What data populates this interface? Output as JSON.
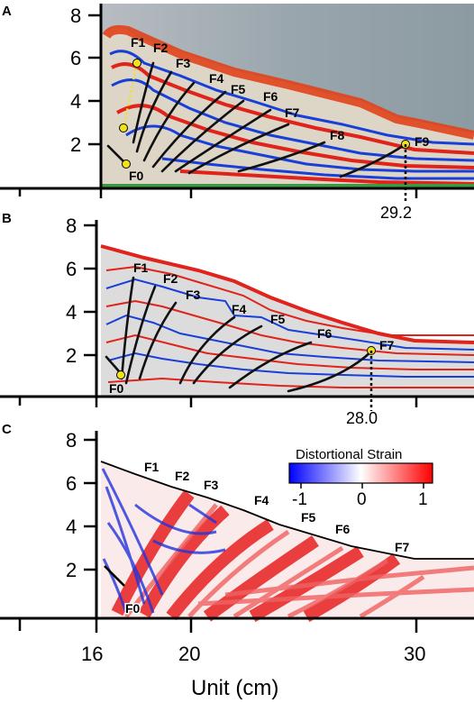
{
  "panels": [
    {
      "letter": "A",
      "y_ticks": [
        "8",
        "6",
        "4",
        "2"
      ],
      "faults": [
        "F1",
        "F2",
        "F3",
        "F4",
        "F5",
        "F6",
        "F7",
        "F8",
        "F9",
        "F0"
      ],
      "front_label": "29.2"
    },
    {
      "letter": "B",
      "y_ticks": [
        "8",
        "6",
        "4",
        "2"
      ],
      "faults": [
        "F1",
        "F2",
        "F3",
        "F4",
        "F5",
        "F6",
        "F7",
        "F0"
      ],
      "front_label": "28.0"
    },
    {
      "letter": "C",
      "y_ticks": [
        "8",
        "6",
        "4",
        "2"
      ],
      "faults": [
        "F1",
        "F2",
        "F3",
        "F4",
        "F5",
        "F6",
        "F7",
        "F0"
      ],
      "colorbar": {
        "title": "Distortional Strain",
        "ticks": [
          "-1",
          "0",
          "1"
        ],
        "colors": [
          "#0000ff",
          "#ffffff",
          "#ff0000"
        ]
      }
    }
  ],
  "x_axis": {
    "title": "Unit (cm)",
    "ticks": [
      "16",
      "20",
      "30"
    ]
  },
  "colors": {
    "blue_layer": "#1a3fd8",
    "red_layer": "#e0231b",
    "fault_line": "#111111",
    "marker": "#f2e21b"
  }
}
